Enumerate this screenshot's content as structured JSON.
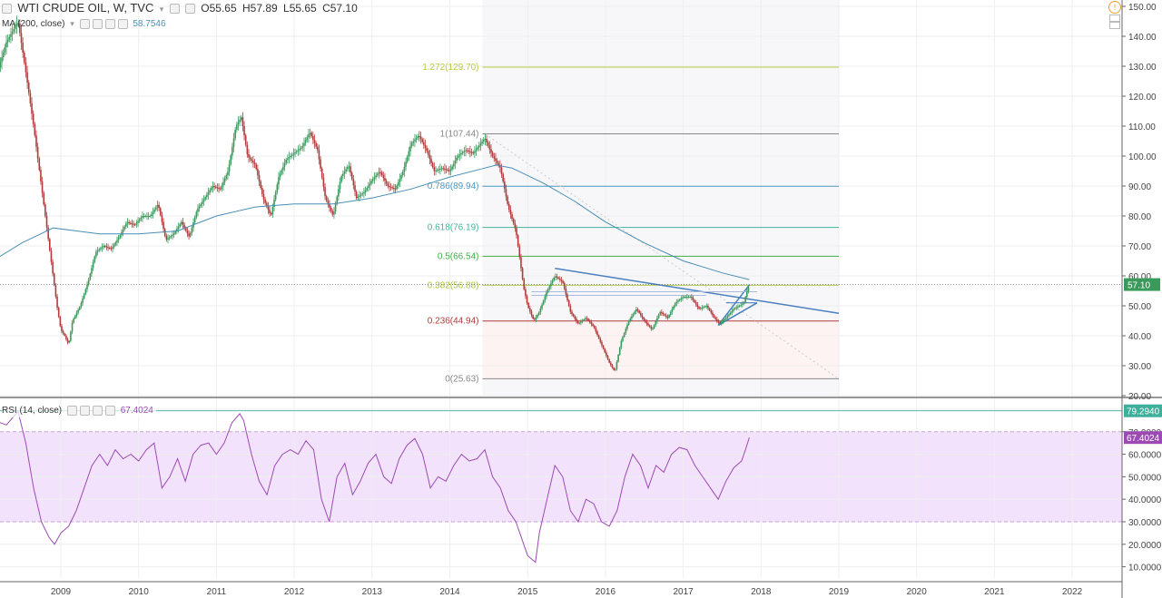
{
  "header": {
    "symbol": "WTI CRUDE OIL, W, TVC",
    "open_label": "O",
    "open": "55.65",
    "high_label": "H",
    "high": "57.89",
    "low_label": "L",
    "low": "55.65",
    "close_label": "C",
    "close": "57.10",
    "ma_label": "MA (200, close)",
    "ma_value": "58.7546",
    "rsi_label": "RSI (14, close)",
    "rsi_value": "67.4024"
  },
  "colors": {
    "up": "#3a9a5c",
    "down": "#b23a3a",
    "ma": "#4a8fb5",
    "rsi": "#9b4bb3",
    "rsi_band": "#f2e2fb",
    "trend": "#4a7fc1"
  },
  "chart_data": [
    {
      "type": "candlestick",
      "title": "WTI CRUDE OIL, W, TVC",
      "x_ticks": [
        "2009",
        "2010",
        "2011",
        "2012",
        "2013",
        "2014",
        "2015",
        "2016",
        "2017",
        "2018",
        "2019",
        "2020",
        "2021",
        "2022"
      ],
      "y_ticks": [
        "150.00",
        "140.00",
        "130.00",
        "120.00",
        "110.00",
        "100.00",
        "90.00",
        "80.00",
        "70.00",
        "60.00",
        "50.00",
        "40.00",
        "30.00",
        "20.00"
      ],
      "ylim": [
        20,
        150
      ],
      "last_price_label": "57.10",
      "fib_levels": [
        {
          "label": "1.272(129.70)",
          "value": 129.7,
          "color": "#b8cc3a"
        },
        {
          "label": "1(107.44)",
          "value": 107.44,
          "color": "#888888"
        },
        {
          "label": "0.786(89.94)",
          "value": 89.94,
          "color": "#4a9ac1"
        },
        {
          "label": "0.618(76.19)",
          "value": 76.19,
          "color": "#3fb59a"
        },
        {
          "label": "0.5(66.54)",
          "value": 66.54,
          "color": "#3fae4a"
        },
        {
          "label": "0.382(56.88)",
          "value": 56.88,
          "color": "#a8c23a"
        },
        {
          "label": "0.236(44.94)",
          "value": 44.94,
          "color": "#b23a3a"
        },
        {
          "label": "0(25.63)",
          "value": 25.63,
          "color": "#888888"
        }
      ],
      "price_path": [
        [
          2008.05,
          110
        ],
        [
          2008.15,
          125
        ],
        [
          2008.3,
          138
        ],
        [
          2008.45,
          145
        ],
        [
          2008.55,
          128
        ],
        [
          2008.65,
          110
        ],
        [
          2008.75,
          90
        ],
        [
          2008.85,
          70
        ],
        [
          2008.95,
          50
        ],
        [
          2009.0,
          42
        ],
        [
          2009.05,
          40
        ],
        [
          2009.1,
          37
        ],
        [
          2009.15,
          45
        ],
        [
          2009.25,
          50
        ],
        [
          2009.35,
          58
        ],
        [
          2009.45,
          68
        ],
        [
          2009.55,
          70
        ],
        [
          2009.65,
          69
        ],
        [
          2009.75,
          73
        ],
        [
          2009.85,
          78
        ],
        [
          2009.95,
          77
        ],
        [
          2010.05,
          80
        ],
        [
          2010.15,
          80
        ],
        [
          2010.25,
          84
        ],
        [
          2010.35,
          72
        ],
        [
          2010.45,
          74
        ],
        [
          2010.55,
          78
        ],
        [
          2010.65,
          73
        ],
        [
          2010.75,
          82
        ],
        [
          2010.85,
          86
        ],
        [
          2010.95,
          90
        ],
        [
          2011.05,
          89
        ],
        [
          2011.15,
          95
        ],
        [
          2011.25,
          110
        ],
        [
          2011.32,
          113
        ],
        [
          2011.4,
          100
        ],
        [
          2011.5,
          97
        ],
        [
          2011.6,
          86
        ],
        [
          2011.7,
          80
        ],
        [
          2011.8,
          93
        ],
        [
          2011.9,
          99
        ],
        [
          2012.0,
          101
        ],
        [
          2012.1,
          103
        ],
        [
          2012.2,
          108
        ],
        [
          2012.3,
          102
        ],
        [
          2012.4,
          86
        ],
        [
          2012.5,
          80
        ],
        [
          2012.6,
          93
        ],
        [
          2012.7,
          97
        ],
        [
          2012.8,
          86
        ],
        [
          2012.9,
          88
        ],
        [
          2013.0,
          92
        ],
        [
          2013.1,
          95
        ],
        [
          2013.2,
          90
        ],
        [
          2013.3,
          89
        ],
        [
          2013.4,
          95
        ],
        [
          2013.5,
          104
        ],
        [
          2013.6,
          107
        ],
        [
          2013.7,
          102
        ],
        [
          2013.8,
          95
        ],
        [
          2013.9,
          96
        ],
        [
          2014.0,
          95
        ],
        [
          2014.1,
          100
        ],
        [
          2014.2,
          102
        ],
        [
          2014.3,
          101
        ],
        [
          2014.45,
          106
        ],
        [
          2014.55,
          100
        ],
        [
          2014.65,
          96
        ],
        [
          2014.75,
          83
        ],
        [
          2014.85,
          75
        ],
        [
          2014.95,
          56
        ],
        [
          2015.0,
          50
        ],
        [
          2015.08,
          45
        ],
        [
          2015.15,
          48
        ],
        [
          2015.25,
          55
        ],
        [
          2015.35,
          60
        ],
        [
          2015.45,
          58
        ],
        [
          2015.55,
          48
        ],
        [
          2015.65,
          44
        ],
        [
          2015.75,
          46
        ],
        [
          2015.85,
          43
        ],
        [
          2015.95,
          37
        ],
        [
          2016.05,
          31
        ],
        [
          2016.12,
          28
        ],
        [
          2016.2,
          38
        ],
        [
          2016.3,
          45
        ],
        [
          2016.4,
          49
        ],
        [
          2016.5,
          45
        ],
        [
          2016.6,
          42
        ],
        [
          2016.7,
          48
        ],
        [
          2016.8,
          46
        ],
        [
          2016.9,
          51
        ],
        [
          2017.0,
          53
        ],
        [
          2017.1,
          53
        ],
        [
          2017.2,
          49
        ],
        [
          2017.3,
          50
        ],
        [
          2017.4,
          46
        ],
        [
          2017.47,
          44
        ],
        [
          2017.55,
          46
        ],
        [
          2017.65,
          49
        ],
        [
          2017.72,
          50
        ],
        [
          2017.78,
          51
        ],
        [
          2017.82,
          55
        ],
        [
          2017.85,
          57
        ]
      ],
      "ma_path": [
        [
          2008.0,
          63
        ],
        [
          2008.5,
          71
        ],
        [
          2008.9,
          76
        ],
        [
          2009.5,
          74
        ],
        [
          2010.0,
          74
        ],
        [
          2010.5,
          75
        ],
        [
          2011.0,
          80
        ],
        [
          2011.5,
          83
        ],
        [
          2012.0,
          84
        ],
        [
          2012.5,
          84
        ],
        [
          2013.0,
          86
        ],
        [
          2013.5,
          89
        ],
        [
          2014.0,
          93
        ],
        [
          2014.45,
          96
        ],
        [
          2014.6,
          97
        ],
        [
          2014.8,
          96
        ],
        [
          2015.2,
          91
        ],
        [
          2015.6,
          85
        ],
        [
          2016.0,
          78
        ],
        [
          2016.5,
          71
        ],
        [
          2017.0,
          65
        ],
        [
          2017.5,
          61
        ],
        [
          2017.85,
          58.75
        ]
      ]
    },
    {
      "type": "line",
      "title": "RSI (14, close)",
      "y_ticks": [
        "80.0000",
        "70.0000",
        "60.0000",
        "50.0000",
        "40.0000",
        "30.0000",
        "20.0000",
        "10.0000"
      ],
      "ylim": [
        5,
        82
      ],
      "band": [
        30,
        70
      ],
      "last_label": "67.4024",
      "peak_label": "79.2940",
      "peak_value": 79.294,
      "rsi_path": [
        [
          2008.0,
          70
        ],
        [
          2008.15,
          75
        ],
        [
          2008.3,
          73
        ],
        [
          2008.45,
          79
        ],
        [
          2008.55,
          65
        ],
        [
          2008.65,
          45
        ],
        [
          2008.75,
          30
        ],
        [
          2008.85,
          23
        ],
        [
          2008.92,
          20
        ],
        [
          2009.0,
          25
        ],
        [
          2009.1,
          28
        ],
        [
          2009.2,
          35
        ],
        [
          2009.3,
          45
        ],
        [
          2009.4,
          55
        ],
        [
          2009.5,
          60
        ],
        [
          2009.6,
          55
        ],
        [
          2009.7,
          62
        ],
        [
          2009.8,
          58
        ],
        [
          2009.9,
          60
        ],
        [
          2010.0,
          57
        ],
        [
          2010.1,
          62
        ],
        [
          2010.2,
          65
        ],
        [
          2010.3,
          45
        ],
        [
          2010.4,
          50
        ],
        [
          2010.5,
          58
        ],
        [
          2010.6,
          48
        ],
        [
          2010.7,
          60
        ],
        [
          2010.8,
          64
        ],
        [
          2010.9,
          65
        ],
        [
          2011.0,
          60
        ],
        [
          2011.1,
          65
        ],
        [
          2011.2,
          74
        ],
        [
          2011.3,
          78
        ],
        [
          2011.35,
          75
        ],
        [
          2011.45,
          60
        ],
        [
          2011.55,
          48
        ],
        [
          2011.65,
          42
        ],
        [
          2011.75,
          55
        ],
        [
          2011.85,
          60
        ],
        [
          2011.95,
          62
        ],
        [
          2012.05,
          60
        ],
        [
          2012.15,
          66
        ],
        [
          2012.25,
          62
        ],
        [
          2012.35,
          40
        ],
        [
          2012.45,
          30
        ],
        [
          2012.55,
          50
        ],
        [
          2012.65,
          56
        ],
        [
          2012.75,
          42
        ],
        [
          2012.85,
          48
        ],
        [
          2012.95,
          56
        ],
        [
          2013.05,
          60
        ],
        [
          2013.15,
          50
        ],
        [
          2013.25,
          47
        ],
        [
          2013.35,
          58
        ],
        [
          2013.45,
          64
        ],
        [
          2013.55,
          67
        ],
        [
          2013.65,
          60
        ],
        [
          2013.75,
          45
        ],
        [
          2013.85,
          50
        ],
        [
          2013.95,
          48
        ],
        [
          2014.05,
          55
        ],
        [
          2014.15,
          60
        ],
        [
          2014.25,
          57
        ],
        [
          2014.35,
          58
        ],
        [
          2014.45,
          62
        ],
        [
          2014.55,
          50
        ],
        [
          2014.65,
          45
        ],
        [
          2014.75,
          35
        ],
        [
          2014.85,
          30
        ],
        [
          2014.95,
          20
        ],
        [
          2015.0,
          15
        ],
        [
          2015.1,
          12
        ],
        [
          2015.15,
          25
        ],
        [
          2015.25,
          40
        ],
        [
          2015.35,
          55
        ],
        [
          2015.45,
          50
        ],
        [
          2015.55,
          35
        ],
        [
          2015.65,
          30
        ],
        [
          2015.75,
          40
        ],
        [
          2015.85,
          38
        ],
        [
          2015.95,
          30
        ],
        [
          2016.05,
          28
        ],
        [
          2016.15,
          35
        ],
        [
          2016.25,
          50
        ],
        [
          2016.35,
          60
        ],
        [
          2016.45,
          55
        ],
        [
          2016.55,
          45
        ],
        [
          2016.65,
          55
        ],
        [
          2016.75,
          52
        ],
        [
          2016.85,
          60
        ],
        [
          2016.95,
          63
        ],
        [
          2017.05,
          62
        ],
        [
          2017.15,
          55
        ],
        [
          2017.25,
          50
        ],
        [
          2017.35,
          45
        ],
        [
          2017.45,
          40
        ],
        [
          2017.55,
          48
        ],
        [
          2017.65,
          54
        ],
        [
          2017.75,
          57
        ],
        [
          2017.8,
          62
        ],
        [
          2017.85,
          67.4
        ]
      ]
    }
  ]
}
